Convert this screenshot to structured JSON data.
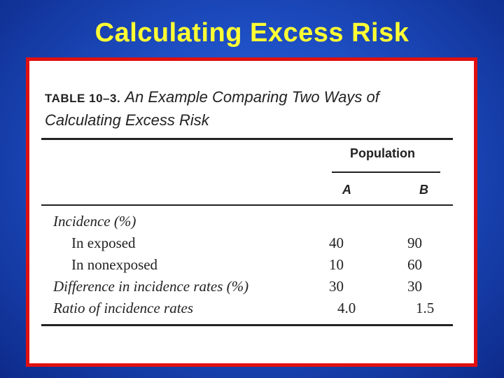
{
  "slide": {
    "title": "Calculating Excess Risk"
  },
  "table": {
    "number": "TABLE 10–3.",
    "caption": "An Example Comparing Two Ways of Calculating Excess Risk",
    "group_header": "Population",
    "columns": [
      "A",
      "B"
    ],
    "section_label": "Incidence (%)",
    "rows": [
      {
        "label": "In exposed",
        "a": "40",
        "b": "90"
      },
      {
        "label": "In nonexposed",
        "a": "10",
        "b": "60"
      },
      {
        "label": "Difference in incidence rates (%)",
        "a": "30",
        "b": "30"
      },
      {
        "label": "Ratio of incidence rates",
        "a": "4.0",
        "b": "1.5"
      }
    ]
  },
  "colors": {
    "background": "#1e4fc4",
    "title": "#ffff33",
    "frame": "#e01010"
  }
}
